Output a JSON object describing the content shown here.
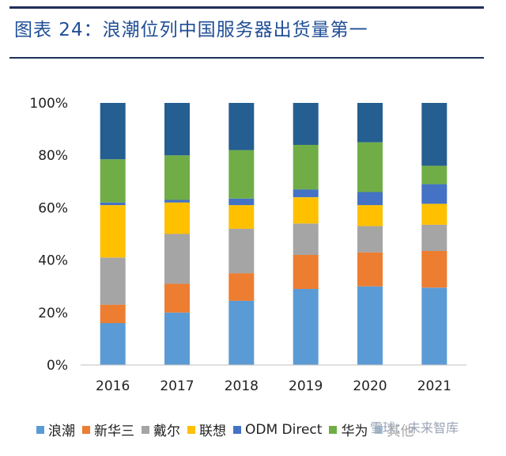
{
  "header": {
    "title": "图表 24：浪潮位列中国服务器出货量第一"
  },
  "watermark": "雪球：未来智库",
  "chart_data": {
    "type": "bar",
    "stacked": true,
    "categories": [
      "2016",
      "2017",
      "2018",
      "2019",
      "2020",
      "2021"
    ],
    "ylim": [
      0,
      100
    ],
    "yticks": [
      "0%",
      "20%",
      "40%",
      "60%",
      "80%",
      "100%"
    ],
    "series": [
      {
        "name": "浪潮",
        "color": "#5b9bd5",
        "values": [
          16,
          20,
          24.5,
          29,
          30,
          29.5
        ]
      },
      {
        "name": "新华三",
        "color": "#ed7d31",
        "values": [
          7,
          11,
          10.5,
          13,
          13,
          14
        ]
      },
      {
        "name": "戴尔",
        "color": "#a5a5a5",
        "values": [
          18,
          19,
          17,
          12,
          10,
          10
        ]
      },
      {
        "name": "联想",
        "color": "#ffc000",
        "values": [
          20,
          12,
          9,
          10,
          8,
          8
        ]
      },
      {
        "name": "ODM Direct",
        "color": "#4472c4",
        "values": [
          1,
          1,
          2.5,
          3,
          5,
          7.5
        ]
      },
      {
        "name": "华为",
        "color": "#70ad47",
        "values": [
          16.5,
          17,
          18.5,
          17,
          19,
          7
        ]
      },
      {
        "name": "其他",
        "color": "#255e91",
        "values": [
          21.5,
          20,
          18,
          16,
          15,
          24
        ]
      }
    ]
  }
}
